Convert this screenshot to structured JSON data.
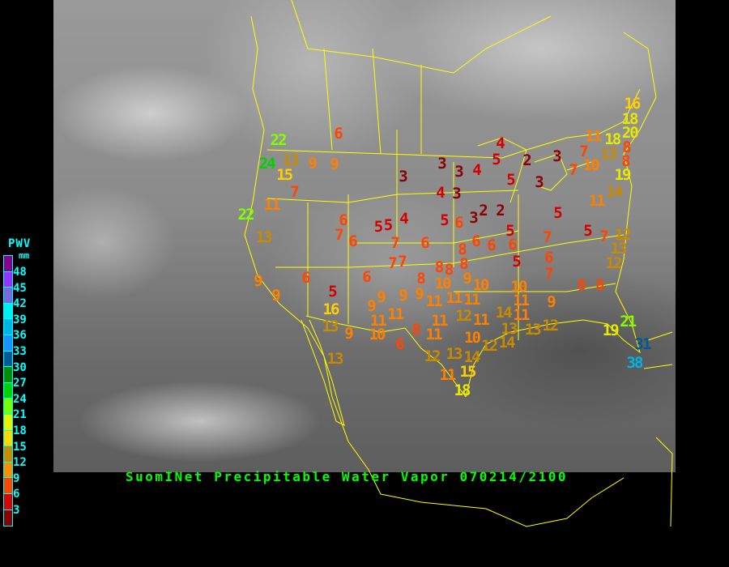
{
  "title": "SuomINet Precipitable Water Vapor 070214/2100",
  "legend": {
    "title": "PWV",
    "unit": "mm",
    "labels": [
      "48",
      "45",
      "42",
      "39",
      "36",
      "33",
      "30",
      "27",
      "24",
      "21",
      "18",
      "15",
      "12",
      "9",
      "6",
      "3"
    ],
    "colors": [
      "#8b008b",
      "#9932ff",
      "#7b68dd",
      "#00eeee",
      "#00b4e6",
      "#1e90ff",
      "#005a96",
      "#008c00",
      "#00d200",
      "#7cfc00",
      "#eeee00",
      "#ffd700",
      "#cd8c00",
      "#ff8c00",
      "#ff4500",
      "#dc0000",
      "#8b0000"
    ]
  },
  "stations": [
    22,
    6,
    24,
    13,
    15,
    9,
    9,
    7,
    11,
    22,
    13,
    6,
    7,
    6,
    5,
    9,
    9,
    6,
    5,
    16,
    13,
    9,
    13,
    6,
    9,
    9,
    11,
    11,
    10,
    6,
    8,
    11,
    9,
    9,
    8,
    10,
    11,
    11,
    11,
    10,
    9,
    10,
    11,
    12,
    11,
    14,
    13,
    11,
    13,
    12,
    10,
    14,
    12,
    12,
    13,
    14,
    11,
    15,
    18,
    7,
    8,
    8,
    8,
    5,
    4,
    5,
    2,
    3,
    3,
    4,
    5,
    3,
    4,
    3,
    2,
    2,
    3,
    5,
    6,
    4,
    5,
    5,
    6,
    6,
    6,
    7,
    6,
    7,
    8,
    16,
    18,
    20,
    11,
    18,
    13,
    8,
    7,
    10,
    8,
    19,
    3,
    7,
    3,
    14,
    11,
    5,
    5,
    7,
    7,
    12,
    13,
    6,
    7,
    12,
    8,
    8,
    9,
    11,
    21,
    19,
    31,
    38
  ]
}
